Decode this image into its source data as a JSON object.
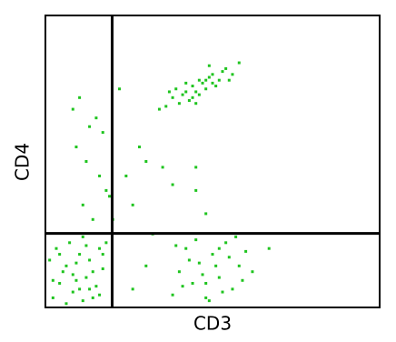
{
  "chart_data": {
    "type": "scatter",
    "x_label": "CD3",
    "y_label": "CD4",
    "color": "#1fc41f",
    "xlim": [
      0,
      100
    ],
    "ylim": [
      0,
      100
    ],
    "gate_x": 19.8,
    "gate_y": 25.2,
    "x": [
      2,
      4,
      6,
      8,
      10,
      12,
      14,
      16,
      3,
      5,
      7,
      9,
      11,
      13,
      15,
      17,
      18,
      1,
      6,
      10,
      12,
      14,
      16,
      4,
      8,
      2,
      13,
      9,
      17,
      11,
      38,
      40,
      42,
      44,
      46,
      48,
      50,
      52,
      54,
      56,
      58,
      60,
      41,
      45,
      47,
      49,
      51,
      53,
      55,
      57,
      43,
      39,
      59,
      48,
      52,
      62,
      26,
      30,
      67,
      36,
      38,
      40,
      42,
      44,
      46,
      48,
      50,
      52,
      54,
      56,
      41,
      43,
      45,
      47,
      49,
      51,
      53,
      39,
      44,
      46,
      48,
      50,
      42,
      55,
      58,
      34,
      37,
      45,
      49,
      10,
      13,
      15,
      9,
      12,
      16,
      18,
      11,
      14,
      17,
      19,
      8,
      22,
      28,
      24,
      30,
      35,
      45,
      48,
      38,
      20,
      26,
      45,
      32
    ],
    "values": [
      3,
      8,
      14,
      5,
      18,
      10,
      3,
      20,
      20,
      12,
      22,
      9,
      2,
      16,
      7,
      13,
      22,
      16,
      1,
      6,
      21,
      12,
      4,
      18,
      11,
      9,
      6,
      15,
      18,
      24,
      4,
      12,
      20,
      8,
      15,
      3,
      18,
      10,
      22,
      6,
      14,
      19,
      7,
      23,
      11,
      2,
      14,
      5,
      17,
      24,
      16,
      21,
      9,
      8,
      20,
      12,
      6,
      14,
      20,
      69,
      72,
      70,
      74,
      76,
      78,
      75,
      80,
      78,
      82,
      80,
      73,
      71,
      74,
      77,
      79,
      76,
      81,
      75,
      72,
      73,
      78,
      77,
      77,
      78,
      84,
      68,
      74,
      70,
      83,
      72,
      62,
      65,
      55,
      50,
      45,
      40,
      35,
      30,
      60,
      38,
      68,
      75,
      55,
      45,
      50,
      48,
      40,
      32,
      42,
      30,
      35,
      48,
      25
    ]
  }
}
